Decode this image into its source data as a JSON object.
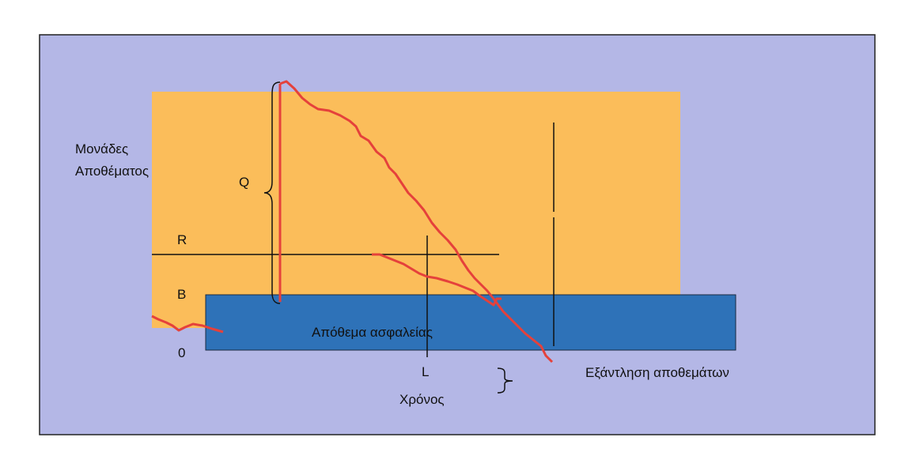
{
  "labels": {
    "y_axis_line1": "Μονάδες",
    "y_axis_line2": "Αποθέματος",
    "q": "Q",
    "r": "R",
    "b": "B",
    "zero": "0",
    "l": "L",
    "x_axis": "Χρόνος",
    "safety_stock": "Απόθεμα ασφαλείας",
    "stockout": "Εξάντληση αποθεμάτων"
  },
  "colors": {
    "background": "#b4b7e6",
    "inventory_area": "#fbbd5a",
    "safety_stock_area": "#2e72b8",
    "curve": "#e5413b",
    "lines": "#111111"
  }
}
